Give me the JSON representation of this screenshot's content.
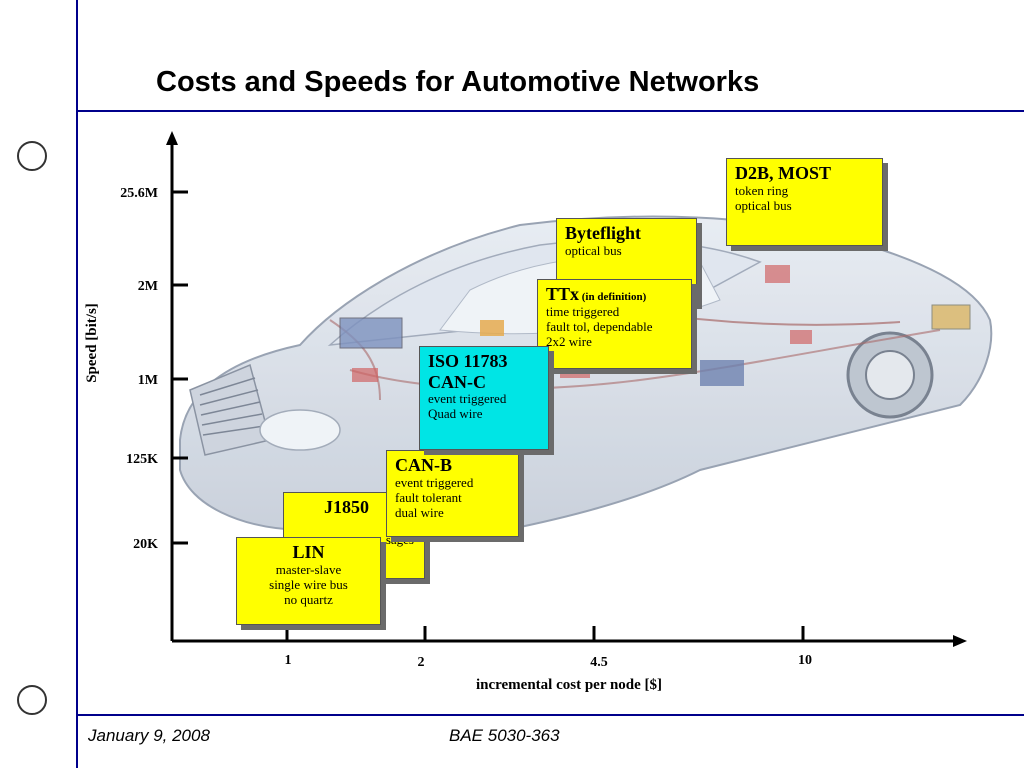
{
  "slide": {
    "title": "Costs and Speeds for Automotive Networks"
  },
  "footer": {
    "date": "January 9, 2008",
    "course": "BAE 5030-363"
  },
  "colors": {
    "rule": "#00008b",
    "note_yellow": "#ffff00",
    "note_cyan": "#00e5e5"
  },
  "chart_data": {
    "type": "scatter",
    "xlabel": "incremental cost per node [$]",
    "ylabel": "Speed [bit/s]",
    "x_ticks": [
      "1",
      "2",
      "4.5",
      "10"
    ],
    "y_ticks": [
      "20K",
      "125K",
      "1M",
      "2M",
      "25.6M"
    ],
    "grid": false,
    "notes": [
      {
        "name": "LIN",
        "qualifier": "",
        "lines": [
          "master-slave",
          "single wire bus",
          "no quartz"
        ],
        "color": "yellow",
        "x": "1",
        "y": "20K"
      },
      {
        "name": "J1850",
        "qualifier": "",
        "lines": [
          "r",
          "sages"
        ],
        "color": "yellow",
        "x": "1",
        "y": "20K"
      },
      {
        "name": "CAN-B",
        "qualifier": "",
        "lines": [
          "event triggered",
          "fault tolerant",
          "dual wire"
        ],
        "color": "yellow",
        "x": "2",
        "y": "125K"
      },
      {
        "name": "ISO 11783 CAN-C",
        "qualifier": "",
        "lines": [
          "event triggered",
          "Quad wire"
        ],
        "color": "cyan",
        "x": "2",
        "y": "1M"
      },
      {
        "name": "TTx",
        "qualifier": "(in definition)",
        "lines": [
          "time triggered",
          "fault tol, dependable",
          "2x2 wire"
        ],
        "color": "yellow",
        "x": "4.5",
        "y": "2M"
      },
      {
        "name": "Byteflight",
        "qualifier": "",
        "lines": [
          "optical bus"
        ],
        "color": "yellow",
        "x": "4.5",
        "y": "2M"
      },
      {
        "name": "D2B, MOST",
        "qualifier": "",
        "lines": [
          "token ring",
          "optical bus"
        ],
        "color": "yellow",
        "x": "10",
        "y": "25.6M"
      }
    ]
  }
}
